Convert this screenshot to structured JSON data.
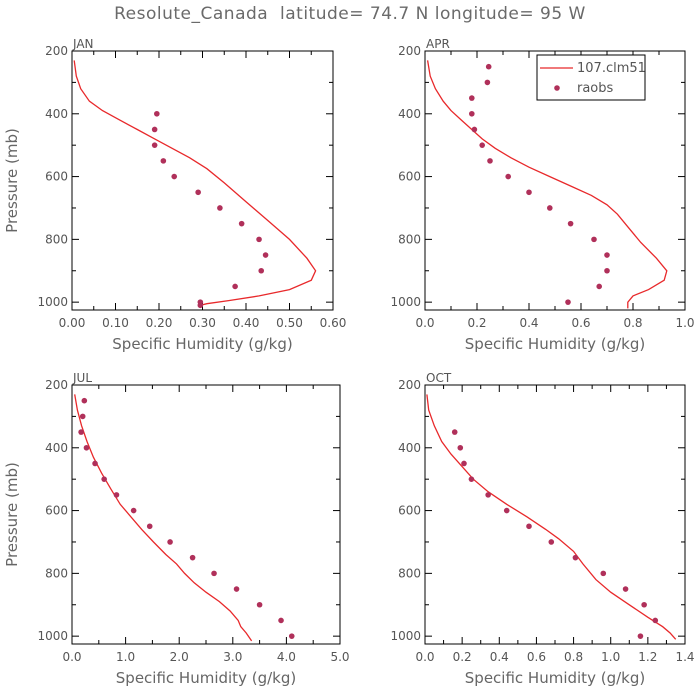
{
  "title": "Resolute_Canada  latitude= 74.7 N longitude= 95 W",
  "colors": {
    "model": "#e8292b",
    "obs": "#b0305a",
    "axis": "#000000",
    "text": "#555555"
  },
  "chart_data": [
    {
      "type": "line",
      "panel": "JAN",
      "xlabel": "Specific Humidity (g/kg)",
      "ylabel": "Pressure (mb)",
      "xlim": [
        0,
        0.6
      ],
      "ylim": [
        1025,
        200
      ],
      "xticks": [
        "0.00",
        "0.10",
        "0.20",
        "0.30",
        "0.40",
        "0.50",
        "0.60"
      ],
      "yticks": [
        "200",
        "400",
        "600",
        "800",
        "1000"
      ],
      "legend": false,
      "series": [
        {
          "name": "107.clm51",
          "style": "line",
          "x": [
            0.005,
            0.01,
            0.02,
            0.04,
            0.07,
            0.11,
            0.15,
            0.19,
            0.23,
            0.27,
            0.31,
            0.35,
            0.4,
            0.45,
            0.5,
            0.54,
            0.56,
            0.55,
            0.5,
            0.43,
            0.36,
            0.31,
            0.295
          ],
          "y": [
            230,
            280,
            320,
            360,
            390,
            420,
            450,
            480,
            510,
            540,
            575,
            620,
            680,
            740,
            800,
            860,
            900,
            930,
            960,
            980,
            995,
            1005,
            1010
          ]
        },
        {
          "name": "raobs",
          "style": "markers",
          "x": [
            0.195,
            0.19,
            0.19,
            0.21,
            0.235,
            0.29,
            0.34,
            0.39,
            0.43,
            0.445,
            0.435,
            0.375,
            0.295,
            0.295
          ],
          "y": [
            400,
            450,
            500,
            550,
            600,
            650,
            700,
            750,
            800,
            850,
            900,
            950,
            1000,
            1010
          ]
        }
      ]
    },
    {
      "type": "line",
      "panel": "APR",
      "xlabel": "Specific Humidity (g/kg)",
      "ylabel": "",
      "xlim": [
        0,
        1.0
      ],
      "ylim": [
        1025,
        200
      ],
      "xticks": [
        "0.0",
        "0.2",
        "0.4",
        "0.6",
        "0.8",
        "1.0"
      ],
      "yticks": [
        "200",
        "400",
        "600",
        "800",
        "1000"
      ],
      "legend": true,
      "legend_position": "top-right",
      "series": [
        {
          "name": "107.clm51",
          "style": "line",
          "x": [
            0.01,
            0.02,
            0.04,
            0.07,
            0.1,
            0.14,
            0.18,
            0.22,
            0.27,
            0.33,
            0.4,
            0.48,
            0.56,
            0.64,
            0.7,
            0.74,
            0.78,
            0.83,
            0.89,
            0.93,
            0.92,
            0.86,
            0.8,
            0.78,
            0.78
          ],
          "y": [
            230,
            280,
            320,
            360,
            390,
            420,
            450,
            480,
            510,
            540,
            570,
            600,
            630,
            660,
            690,
            720,
            760,
            810,
            860,
            900,
            930,
            960,
            980,
            1000,
            1020
          ]
        },
        {
          "name": "raobs",
          "style": "markers",
          "x": [
            0.245,
            0.24,
            0.18,
            0.18,
            0.19,
            0.22,
            0.25,
            0.32,
            0.4,
            0.48,
            0.56,
            0.65,
            0.7,
            0.7,
            0.67,
            0.55
          ],
          "y": [
            250,
            300,
            350,
            400,
            450,
            500,
            550,
            600,
            650,
            700,
            750,
            800,
            850,
            900,
            950,
            1000
          ]
        }
      ]
    },
    {
      "type": "line",
      "panel": "JUL",
      "xlabel": "Specific Humidity (g/kg)",
      "ylabel": "Pressure (mb)",
      "xlim": [
        0,
        5.0
      ],
      "ylim": [
        1025,
        200
      ],
      "xticks": [
        "0.0",
        "1.0",
        "2.0",
        "3.0",
        "4.0",
        "5.0"
      ],
      "yticks": [
        "200",
        "400",
        "600",
        "800",
        "1000"
      ],
      "legend": false,
      "series": [
        {
          "name": "107.clm51",
          "style": "line",
          "x": [
            0.05,
            0.1,
            0.18,
            0.28,
            0.4,
            0.55,
            0.72,
            0.9,
            1.1,
            1.3,
            1.52,
            1.75,
            1.95,
            2.1,
            2.28,
            2.5,
            2.75,
            2.95,
            3.1,
            3.15,
            3.25,
            3.35
          ],
          "y": [
            230,
            280,
            330,
            380,
            430,
            480,
            530,
            580,
            620,
            660,
            700,
            740,
            770,
            800,
            830,
            860,
            890,
            920,
            950,
            970,
            990,
            1015
          ]
        },
        {
          "name": "raobs",
          "style": "markers",
          "x": [
            0.23,
            0.2,
            0.17,
            0.27,
            0.43,
            0.6,
            0.83,
            1.15,
            1.45,
            1.83,
            2.25,
            2.65,
            3.07,
            3.5,
            3.9,
            4.1
          ],
          "y": [
            250,
            300,
            350,
            400,
            450,
            500,
            550,
            600,
            650,
            700,
            750,
            800,
            850,
            900,
            950,
            1000
          ]
        }
      ]
    },
    {
      "type": "line",
      "panel": "OCT",
      "xlabel": "Specific Humidity (g/kg)",
      "ylabel": "",
      "xlim": [
        0,
        1.4
      ],
      "ylim": [
        1025,
        200
      ],
      "xticks": [
        "0.0",
        "0.2",
        "0.4",
        "0.6",
        "0.8",
        "1.0",
        "1.2",
        "1.4"
      ],
      "yticks": [
        "200",
        "400",
        "600",
        "800",
        "1000"
      ],
      "legend": false,
      "series": [
        {
          "name": "107.clm51",
          "style": "line",
          "x": [
            0.01,
            0.02,
            0.05,
            0.09,
            0.14,
            0.2,
            0.26,
            0.34,
            0.44,
            0.55,
            0.65,
            0.72,
            0.8,
            0.85,
            0.92,
            1.0,
            1.1,
            1.2,
            1.28,
            1.32,
            1.35
          ],
          "y": [
            230,
            280,
            330,
            380,
            420,
            460,
            500,
            540,
            580,
            620,
            660,
            690,
            730,
            770,
            820,
            860,
            900,
            940,
            970,
            990,
            1010
          ]
        },
        {
          "name": "raobs",
          "style": "markers",
          "x": [
            0.16,
            0.19,
            0.21,
            0.25,
            0.34,
            0.44,
            0.56,
            0.68,
            0.81,
            0.96,
            1.08,
            1.18,
            1.24,
            1.16
          ],
          "y": [
            350,
            400,
            450,
            500,
            550,
            600,
            650,
            700,
            750,
            800,
            850,
            900,
            950,
            1000
          ]
        }
      ]
    }
  ]
}
